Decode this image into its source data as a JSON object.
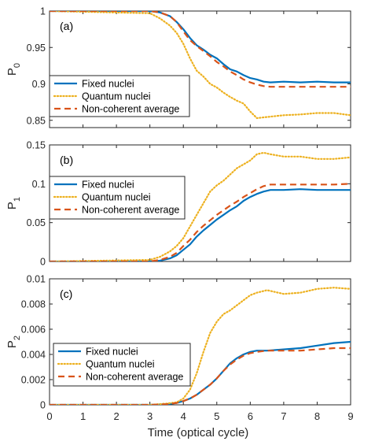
{
  "colors": {
    "fixed": "#0072BD",
    "quantum": "#EDB120",
    "noncoherent": "#D95319",
    "axis": "#262626"
  },
  "x_axis": {
    "label": "Time (optical cycle)",
    "ticks": [
      "0",
      "1",
      "2",
      "3",
      "4",
      "5",
      "6",
      "7",
      "8",
      "9"
    ],
    "range": [
      0,
      9
    ]
  },
  "chart_data": [
    {
      "type": "line",
      "panel_label": "(a)",
      "ylabel": "P",
      "ylabel_sub": "0",
      "ylim": [
        0.84,
        1.0
      ],
      "yticks": [
        0.85,
        0.9,
        0.95,
        1
      ],
      "ytick_labels": [
        "0.85",
        "0.9",
        "0.95",
        "1"
      ],
      "legend_position": "center-left",
      "series": [
        {
          "name": "Fixed nuclei",
          "style": "solid",
          "x": [
            0,
            3.0,
            3.3,
            3.6,
            3.8,
            4.0,
            4.2,
            4.4,
            4.6,
            4.8,
            5.0,
            5.2,
            5.4,
            5.6,
            5.8,
            6.0,
            6.2,
            6.4,
            6.6,
            7.0,
            7.5,
            8.0,
            8.5,
            9.0
          ],
          "y": [
            1.0,
            1.0,
            0.998,
            0.993,
            0.985,
            0.975,
            0.963,
            0.953,
            0.947,
            0.94,
            0.935,
            0.927,
            0.92,
            0.917,
            0.912,
            0.908,
            0.906,
            0.903,
            0.902,
            0.903,
            0.902,
            0.903,
            0.902,
            0.902
          ]
        },
        {
          "name": "Quantum nuclei",
          "style": "dotted",
          "x": [
            0,
            3.0,
            3.3,
            3.6,
            3.8,
            4.0,
            4.2,
            4.4,
            4.6,
            4.8,
            5.0,
            5.2,
            5.4,
            5.6,
            5.8,
            6.0,
            6.2,
            6.4,
            6.6,
            7.0,
            7.5,
            8.0,
            8.5,
            9.0
          ],
          "y": [
            1.0,
            0.997,
            0.99,
            0.98,
            0.97,
            0.955,
            0.935,
            0.918,
            0.91,
            0.9,
            0.895,
            0.888,
            0.882,
            0.877,
            0.873,
            0.862,
            0.853,
            0.854,
            0.855,
            0.857,
            0.858,
            0.86,
            0.86,
            0.857
          ]
        },
        {
          "name": "Non-coherent average",
          "style": "dashed",
          "x": [
            0,
            3.0,
            3.3,
            3.6,
            3.8,
            4.0,
            4.2,
            4.4,
            4.6,
            4.8,
            5.0,
            5.2,
            5.4,
            5.6,
            5.8,
            6.0,
            6.2,
            6.4,
            6.6,
            7.0,
            7.5,
            8.0,
            8.5,
            9.0
          ],
          "y": [
            1.0,
            1.0,
            0.998,
            0.993,
            0.985,
            0.972,
            0.96,
            0.952,
            0.945,
            0.938,
            0.93,
            0.924,
            0.917,
            0.912,
            0.906,
            0.902,
            0.899,
            0.897,
            0.896,
            0.896,
            0.896,
            0.896,
            0.896,
            0.896
          ]
        }
      ]
    },
    {
      "type": "line",
      "panel_label": "(b)",
      "ylabel": "P",
      "ylabel_sub": "1",
      "ylim": [
        0,
        0.15
      ],
      "yticks": [
        0,
        0.05,
        0.1,
        0.15
      ],
      "ytick_labels": [
        "0",
        "0.05",
        "0.1",
        "0.15"
      ],
      "legend_position": "center-left",
      "series": [
        {
          "name": "Fixed nuclei",
          "style": "solid",
          "x": [
            0,
            3.0,
            3.3,
            3.6,
            3.8,
            4.0,
            4.2,
            4.4,
            4.6,
            4.8,
            5.0,
            5.2,
            5.4,
            5.6,
            5.8,
            6.0,
            6.2,
            6.4,
            6.6,
            7.0,
            7.5,
            8.0,
            8.5,
            9.0
          ],
          "y": [
            0,
            0.0,
            0.001,
            0.004,
            0.008,
            0.015,
            0.022,
            0.032,
            0.04,
            0.047,
            0.054,
            0.06,
            0.066,
            0.071,
            0.078,
            0.083,
            0.087,
            0.09,
            0.092,
            0.092,
            0.093,
            0.092,
            0.092,
            0.092
          ]
        },
        {
          "name": "Quantum nuclei",
          "style": "dotted",
          "x": [
            0,
            3.0,
            3.3,
            3.6,
            3.8,
            4.0,
            4.2,
            4.4,
            4.6,
            4.8,
            5.0,
            5.2,
            5.4,
            5.6,
            5.8,
            6.0,
            6.2,
            6.4,
            6.6,
            7.0,
            7.5,
            8.0,
            8.5,
            9.0
          ],
          "y": [
            0,
            0.002,
            0.006,
            0.013,
            0.02,
            0.03,
            0.045,
            0.06,
            0.075,
            0.09,
            0.098,
            0.104,
            0.112,
            0.12,
            0.125,
            0.13,
            0.138,
            0.14,
            0.138,
            0.135,
            0.135,
            0.132,
            0.132,
            0.134
          ]
        },
        {
          "name": "Non-coherent average",
          "style": "dashed",
          "x": [
            0,
            3.0,
            3.3,
            3.6,
            3.8,
            4.0,
            4.2,
            4.4,
            4.6,
            4.8,
            5.0,
            5.2,
            5.4,
            5.6,
            5.8,
            6.0,
            6.2,
            6.4,
            6.6,
            7.0,
            7.5,
            8.0,
            8.5,
            9.0
          ],
          "y": [
            0,
            0.0,
            0.002,
            0.006,
            0.011,
            0.02,
            0.028,
            0.038,
            0.046,
            0.053,
            0.06,
            0.066,
            0.072,
            0.077,
            0.083,
            0.088,
            0.093,
            0.097,
            0.099,
            0.099,
            0.099,
            0.099,
            0.099,
            0.1
          ]
        }
      ]
    },
    {
      "type": "line",
      "panel_label": "(c)",
      "ylabel": "P",
      "ylabel_sub": "2",
      "ylim": [
        0,
        0.01
      ],
      "yticks": [
        0,
        0.002,
        0.004,
        0.006,
        0.008,
        0.01
      ],
      "ytick_labels": [
        "0",
        "0.002",
        "0.004",
        "0.006",
        "0.008",
        "0.01"
      ],
      "legend_position": "bottom-left",
      "series": [
        {
          "name": "Fixed nuclei",
          "style": "solid",
          "x": [
            0,
            3.0,
            3.5,
            3.8,
            4.0,
            4.2,
            4.4,
            4.6,
            4.8,
            5.0,
            5.2,
            5.4,
            5.6,
            5.8,
            6.0,
            6.2,
            6.5,
            7.0,
            7.5,
            8.0,
            8.5,
            9.0
          ],
          "y": [
            0,
            0.0,
            5e-05,
            0.00015,
            0.0003,
            0.0005,
            0.0008,
            0.0012,
            0.0016,
            0.0021,
            0.0027,
            0.0033,
            0.0037,
            0.004,
            0.0042,
            0.0043,
            0.0043,
            0.0044,
            0.0045,
            0.0047,
            0.0049,
            0.005
          ]
        },
        {
          "name": "Quantum nuclei",
          "style": "dotted",
          "x": [
            0,
            3.0,
            3.5,
            3.8,
            4.0,
            4.2,
            4.4,
            4.6,
            4.8,
            5.0,
            5.2,
            5.4,
            5.6,
            5.8,
            6.0,
            6.2,
            6.5,
            7.0,
            7.5,
            8.0,
            8.5,
            9.0
          ],
          "y": [
            0,
            0.0,
            0.0001,
            0.0002,
            0.0005,
            0.0012,
            0.0025,
            0.0042,
            0.0057,
            0.0066,
            0.0072,
            0.0075,
            0.0079,
            0.0083,
            0.0087,
            0.0089,
            0.0091,
            0.0088,
            0.0089,
            0.0092,
            0.0093,
            0.0092
          ]
        },
        {
          "name": "Non-coherent average",
          "style": "dashed",
          "x": [
            0,
            3.0,
            3.5,
            3.8,
            4.0,
            4.2,
            4.4,
            4.6,
            4.8,
            5.0,
            5.2,
            5.4,
            5.6,
            5.8,
            6.0,
            6.2,
            6.5,
            7.0,
            7.5,
            8.0,
            8.5,
            9.0
          ],
          "y": [
            0,
            0.0,
            5e-05,
            0.00015,
            0.0003,
            0.0005,
            0.0008,
            0.0012,
            0.0016,
            0.0021,
            0.0027,
            0.0032,
            0.0036,
            0.0039,
            0.0041,
            0.0042,
            0.0043,
            0.0043,
            0.0043,
            0.0044,
            0.0045,
            0.0045
          ]
        }
      ]
    }
  ]
}
